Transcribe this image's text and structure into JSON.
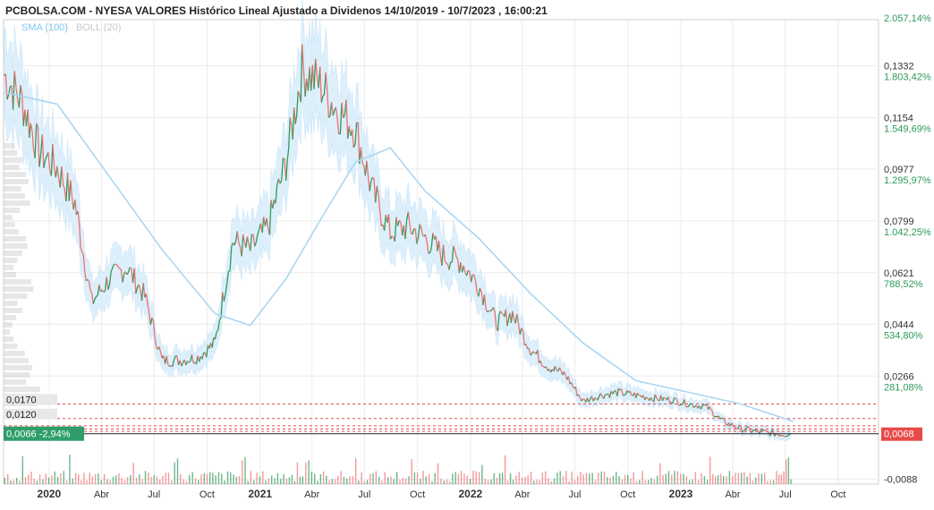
{
  "header": {
    "title": "PCBOLSA.COM - NYESA VALORES Histórico Lineal Ajustado a Dividenos 14/10/2019 - 10/7/2023 , 16:00:21",
    "indicator_sma": "SMA (100)",
    "indicator_boll": "BOLL (20)"
  },
  "colors": {
    "up": "#2e9a5a",
    "down": "#ef6f6f",
    "sma": "#a9d6f2",
    "bollinger_band": "#d8edfb",
    "volume_bars": "#c9c9c9",
    "reference_lines": "#e05050",
    "current_price_label": "#e84a4a",
    "last_value_tag": "#2f9e6a",
    "percent_text": "#2e9a5a"
  },
  "chart_data": {
    "type": "line",
    "subtype": "candlestick-with-volume",
    "period_start": "14/10/2019",
    "period_end": "10/7/2023",
    "x_axis_labels": [
      "2020",
      "Abr",
      "Jul",
      "Oct",
      "2021",
      "Abr",
      "Jul",
      "Oct",
      "2022",
      "Abr",
      "Jul",
      "Oct",
      "2023",
      "Abr",
      "Jul",
      "Oct"
    ],
    "x_axis_dates": [
      "2020-01-01",
      "2020-04-01",
      "2020-07-01",
      "2020-10-01",
      "2021-01-01",
      "2021-04-01",
      "2021-07-01",
      "2021-10-01",
      "2022-01-01",
      "2022-04-01",
      "2022-07-01",
      "2022-10-01",
      "2023-01-01",
      "2023-04-01",
      "2023-07-01",
      "2023-10-01"
    ],
    "y_axis": {
      "ticks": [
        0.1332,
        0.1154,
        0.0977,
        0.0799,
        0.0621,
        0.0444,
        0.0266,
        -0.0088
      ],
      "tick_labels": [
        "0,1332",
        "0,1154",
        "0,0977",
        "0,0799",
        "0,0621",
        "0,0444",
        "0,0266",
        "-0,0088"
      ],
      "percent_labels": [
        "1.803,42%",
        "1.549,69%",
        "1.295,97%",
        "1.042,25%",
        "788,52%",
        "534,80%",
        "281,08%"
      ],
      "top_percent_label": "2.057,14%",
      "ylim": [
        -0.0105,
        0.149
      ],
      "position": "right"
    },
    "current_price": 0.0068,
    "current_price_label": "0,0068",
    "last_value_tag": {
      "price": "0,0066",
      "change": "-2,94%"
    },
    "reference_lines": [
      {
        "value": 0.017,
        "label": "0,0170"
      },
      {
        "value": 0.012,
        "label": "0,0120"
      },
      {
        "value": 0.0095,
        "label": ""
      },
      {
        "value": 0.0084,
        "label": ""
      },
      {
        "value": 0.0076,
        "label": ""
      }
    ],
    "price_series": {
      "name": "",
      "monthly_close": [
        {
          "date": "2019-10",
          "value": 0.13
        },
        {
          "date": "2019-11",
          "value": 0.121
        },
        {
          "date": "2019-12",
          "value": 0.104
        },
        {
          "date": "2020-01",
          "value": 0.098
        },
        {
          "date": "2020-02",
          "value": 0.086
        },
        {
          "date": "2020-03",
          "value": 0.052
        },
        {
          "date": "2020-04",
          "value": 0.06
        },
        {
          "date": "2020-05",
          "value": 0.064
        },
        {
          "date": "2020-06",
          "value": 0.054
        },
        {
          "date": "2020-07",
          "value": 0.032
        },
        {
          "date": "2020-08",
          "value": 0.032
        },
        {
          "date": "2020-09",
          "value": 0.033
        },
        {
          "date": "2020-10",
          "value": 0.038
        },
        {
          "date": "2020-11",
          "value": 0.073
        },
        {
          "date": "2020-12",
          "value": 0.07
        },
        {
          "date": "2021-01",
          "value": 0.078
        },
        {
          "date": "2021-02",
          "value": 0.1
        },
        {
          "date": "2021-03",
          "value": 0.132
        },
        {
          "date": "2021-04",
          "value": 0.127
        },
        {
          "date": "2021-05",
          "value": 0.118
        },
        {
          "date": "2021-06",
          "value": 0.112
        },
        {
          "date": "2021-07",
          "value": 0.09
        },
        {
          "date": "2021-08",
          "value": 0.076
        },
        {
          "date": "2021-09",
          "value": 0.078
        },
        {
          "date": "2021-10",
          "value": 0.074
        },
        {
          "date": "2021-11",
          "value": 0.068
        },
        {
          "date": "2021-12",
          "value": 0.066
        },
        {
          "date": "2022-01",
          "value": 0.058
        },
        {
          "date": "2022-02",
          "value": 0.045
        },
        {
          "date": "2022-03",
          "value": 0.048
        },
        {
          "date": "2022-04",
          "value": 0.036
        },
        {
          "date": "2022-05",
          "value": 0.03
        },
        {
          "date": "2022-06",
          "value": 0.027
        },
        {
          "date": "2022-07",
          "value": 0.018
        },
        {
          "date": "2022-08",
          "value": 0.02
        },
        {
          "date": "2022-09",
          "value": 0.021
        },
        {
          "date": "2022-10",
          "value": 0.02
        },
        {
          "date": "2022-11",
          "value": 0.019
        },
        {
          "date": "2022-12",
          "value": 0.0185
        },
        {
          "date": "2023-01",
          "value": 0.017
        },
        {
          "date": "2023-02",
          "value": 0.016
        },
        {
          "date": "2023-03",
          "value": 0.011
        },
        {
          "date": "2023-04",
          "value": 0.0085
        },
        {
          "date": "2023-05",
          "value": 0.0075
        },
        {
          "date": "2023-06",
          "value": 0.0068
        },
        {
          "date": "2023-07",
          "value": 0.0066
        }
      ]
    },
    "sma_series": {
      "name": "SMA (100)",
      "monthly_value": [
        {
          "date": "2019-10",
          "value": 0.124
        },
        {
          "date": "2020-01",
          "value": 0.12
        },
        {
          "date": "2020-04",
          "value": 0.095
        },
        {
          "date": "2020-07",
          "value": 0.07
        },
        {
          "date": "2020-10",
          "value": 0.048
        },
        {
          "date": "2020-12",
          "value": 0.044
        },
        {
          "date": "2021-02",
          "value": 0.06
        },
        {
          "date": "2021-04",
          "value": 0.08
        },
        {
          "date": "2021-06",
          "value": 0.1
        },
        {
          "date": "2021-08",
          "value": 0.105
        },
        {
          "date": "2021-10",
          "value": 0.09
        },
        {
          "date": "2022-01",
          "value": 0.074
        },
        {
          "date": "2022-04",
          "value": 0.055
        },
        {
          "date": "2022-07",
          "value": 0.038
        },
        {
          "date": "2022-10",
          "value": 0.025
        },
        {
          "date": "2023-01",
          "value": 0.021
        },
        {
          "date": "2023-04",
          "value": 0.017
        },
        {
          "date": "2023-07",
          "value": 0.011
        }
      ]
    },
    "grid": true,
    "legend": "top-left"
  }
}
